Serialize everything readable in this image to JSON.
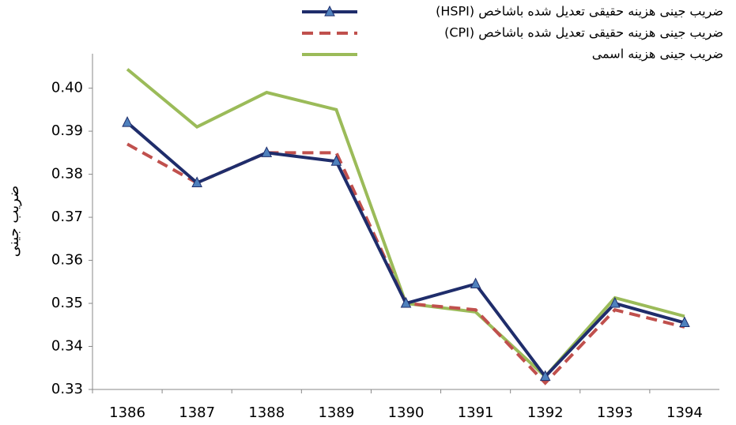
{
  "chart_data": {
    "type": "line",
    "y_label": "ضریب جینی",
    "categories": [
      "1386",
      "1387",
      "1388",
      "1389",
      "1390",
      "1391",
      "1392",
      "1393",
      "1394"
    ],
    "series": [
      {
        "name": "ضریب جینی هزینه حقیقی  تعدیل شده باشاخص (HSPI)",
        "color": "#1f2d6b",
        "style": "solid-triangle",
        "values": [
          0.392,
          0.378,
          0.385,
          0.383,
          0.35,
          0.3545,
          0.333,
          0.35,
          0.3455
        ]
      },
      {
        "name": "ضریب جینی هزینه حقیقی تعدیل شده باشاخص (CPI)",
        "color": "#c0504d",
        "style": "dashed",
        "values": [
          0.387,
          0.378,
          0.385,
          0.385,
          0.35,
          0.3485,
          0.3315,
          0.3485,
          0.3445
        ]
      },
      {
        "name": "ضریب جینی هزینه اسمی",
        "color": "#9bbb59",
        "style": "solid",
        "values": [
          0.4044,
          0.391,
          0.399,
          0.395,
          0.35,
          0.348,
          0.333,
          0.3513,
          0.347
        ]
      }
    ],
    "ylim": [
      0.33,
      0.408
    ],
    "yticks": [
      0.33,
      0.34,
      0.35,
      0.36,
      0.37,
      0.38,
      0.39,
      {
        "value": 0.4,
        "label": "0.40"
      }
    ]
  }
}
